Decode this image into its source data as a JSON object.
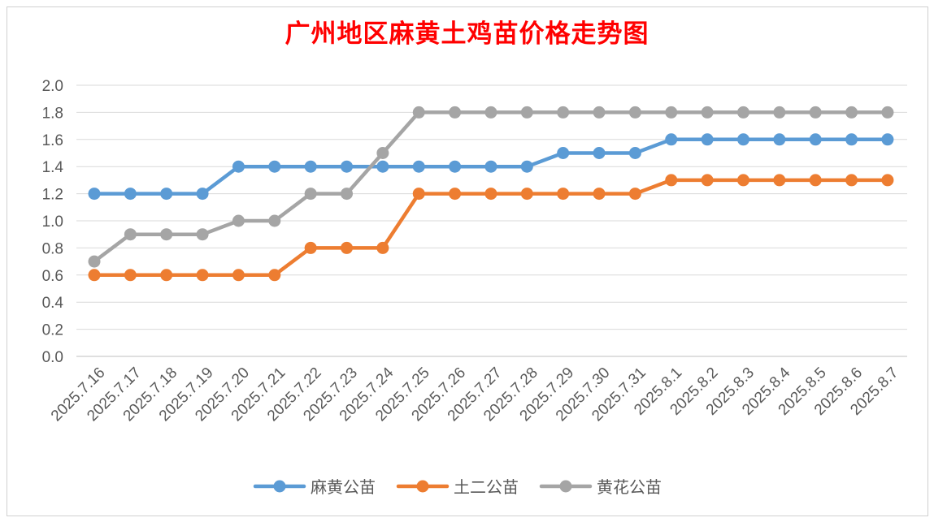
{
  "chart_data": {
    "type": "line",
    "title": "广州地区麻黄土鸡苗价格走势图",
    "title_color": "#ff0000",
    "categories": [
      "2025.7.16",
      "2025.7.17",
      "2025.7.18",
      "2025.7.19",
      "2025.7.20",
      "2025.7.21",
      "2025.7.22",
      "2025.7.23",
      "2025.7.24",
      "2025.7.25",
      "2025.7.26",
      "2025.7.27",
      "2025.7.28",
      "2025.7.29",
      "2025.7.30",
      "2025.7.31",
      "2025.8.1",
      "2025.8.2",
      "2025.8.3",
      "2025.8.4",
      "2025.8.5",
      "2025.8.6",
      "2025.8.7"
    ],
    "series": [
      {
        "name": "麻黄公苗",
        "color": "#5b9bd5",
        "values": [
          1.2,
          1.2,
          1.2,
          1.2,
          1.4,
          1.4,
          1.4,
          1.4,
          1.4,
          1.4,
          1.4,
          1.4,
          1.4,
          1.5,
          1.5,
          1.5,
          1.6,
          1.6,
          1.6,
          1.6,
          1.6,
          1.6,
          1.6
        ]
      },
      {
        "name": "土二公苗",
        "color": "#ed7d31",
        "values": [
          0.6,
          0.6,
          0.6,
          0.6,
          0.6,
          0.6,
          0.8,
          0.8,
          0.8,
          1.2,
          1.2,
          1.2,
          1.2,
          1.2,
          1.2,
          1.2,
          1.3,
          1.3,
          1.3,
          1.3,
          1.3,
          1.3,
          1.3
        ]
      },
      {
        "name": "黄花公苗",
        "color": "#a5a5a5",
        "values": [
          0.7,
          0.9,
          0.9,
          0.9,
          1.0,
          1.0,
          1.2,
          1.2,
          1.5,
          1.8,
          1.8,
          1.8,
          1.8,
          1.8,
          1.8,
          1.8,
          1.8,
          1.8,
          1.8,
          1.8,
          1.8,
          1.8,
          1.8
        ]
      }
    ],
    "yticks": [
      "0.0",
      "0.2",
      "0.4",
      "0.6",
      "0.8",
      "1.0",
      "1.2",
      "1.4",
      "1.6",
      "1.8",
      "2.0"
    ],
    "ylim": [
      0,
      2.0
    ],
    "grid": true,
    "legend_position": "bottom"
  }
}
